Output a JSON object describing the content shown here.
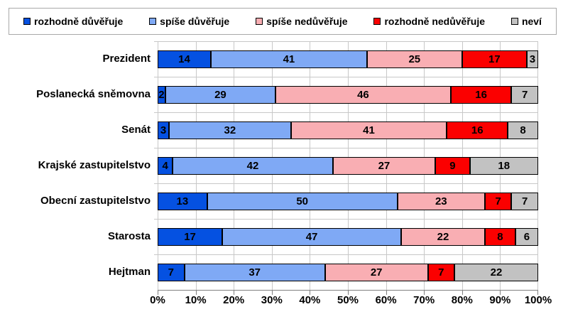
{
  "chart_data": {
    "type": "bar",
    "orientation": "horizontal",
    "stacked": true,
    "title": "",
    "categories": [
      "Prezident",
      "Poslanecká sněmovna",
      "Senát",
      "Krajské zastupitelstvo",
      "Obecní zastupitelstvo",
      "Starosta",
      "Hejtman"
    ],
    "series": [
      {
        "name": "rozhodně důvěřuje",
        "color": "#0551E1",
        "values": [
          14,
          2,
          3,
          4,
          13,
          17,
          7
        ]
      },
      {
        "name": "spíše důvěřuje",
        "color": "#7FA9F5",
        "values": [
          41,
          29,
          32,
          42,
          50,
          47,
          37
        ]
      },
      {
        "name": "spíše nedůvěřuje",
        "color": "#F9AEB3",
        "values": [
          25,
          46,
          41,
          27,
          23,
          22,
          27
        ]
      },
      {
        "name": "rozhodně nedůvěřuje",
        "color": "#FB0000",
        "values": [
          17,
          16,
          16,
          9,
          7,
          8,
          7
        ]
      },
      {
        "name": "neví",
        "color": "#C2C2C2",
        "values": [
          3,
          7,
          8,
          18,
          7,
          6,
          22
        ]
      }
    ],
    "x_axis": {
      "min": 0,
      "max": 100,
      "tick_labels": [
        "0%",
        "10%",
        "20%",
        "30%",
        "40%",
        "50%",
        "60%",
        "70%",
        "80%",
        "90%",
        "100%"
      ]
    },
    "value_labels_shown": true,
    "legend_position": "top",
    "grid": true,
    "colors": {
      "segment_border": "#000000",
      "gridline": "#c8c8c8",
      "axis_line": "#808080",
      "background": "#ffffff"
    }
  }
}
